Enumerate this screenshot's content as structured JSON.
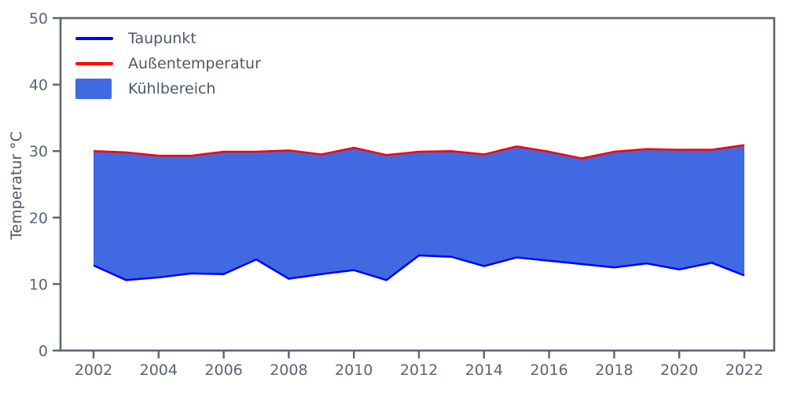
{
  "chart_data": {
    "type": "area",
    "title": "",
    "xlabel": "",
    "ylabel": "Temperatur °C",
    "x": [
      2002,
      2003,
      2004,
      2005,
      2006,
      2007,
      2008,
      2009,
      2010,
      2011,
      2012,
      2013,
      2014,
      2015,
      2016,
      2017,
      2018,
      2019,
      2020,
      2021,
      2022
    ],
    "series": [
      {
        "name": "Taupunkt",
        "color": "#0000ff",
        "values": [
          12.8,
          10.6,
          11.0,
          11.6,
          11.5,
          13.7,
          10.8,
          11.5,
          12.1,
          10.6,
          14.3,
          14.1,
          12.7,
          14.0,
          13.5,
          13.0,
          12.5,
          13.1,
          12.2,
          13.2,
          11.3
        ]
      },
      {
        "name": "Außentemperatur",
        "color": "#ff0000",
        "values": [
          30.0,
          29.8,
          29.3,
          29.3,
          29.9,
          29.9,
          30.1,
          29.5,
          30.5,
          29.4,
          29.9,
          30.0,
          29.5,
          30.7,
          29.9,
          28.9,
          29.9,
          30.3,
          30.2,
          30.2,
          30.9
        ]
      }
    ],
    "area": {
      "name": "Kühlbereich",
      "color": "#4169e1",
      "between": [
        "Taupunkt",
        "Außentemperatur"
      ]
    },
    "ylim": [
      0,
      50
    ],
    "xlim": [
      2001,
      2023
    ],
    "yticks": [
      "0",
      "10",
      "20",
      "30",
      "40",
      "50"
    ],
    "ytick_values": [
      0,
      10,
      20,
      30,
      40,
      50
    ],
    "xticks": [
      "2002",
      "2004",
      "2006",
      "2008",
      "2010",
      "2012",
      "2014",
      "2016",
      "2018",
      "2020",
      "2022"
    ],
    "xtick_values": [
      2002,
      2004,
      2006,
      2008,
      2010,
      2012,
      2014,
      2016,
      2018,
      2020,
      2022
    ],
    "grid": false,
    "legend_position": "upper-left",
    "legend_frame": false,
    "axis_color": "#5b6472",
    "text_color": "#4e5866",
    "background": "#ffffff"
  }
}
